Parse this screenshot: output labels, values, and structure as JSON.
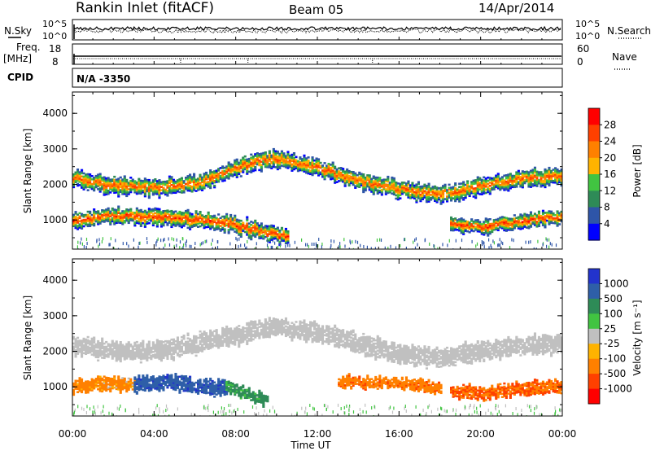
{
  "header": {
    "title": "Rankin Inlet (fitACF)",
    "beam": "Beam 05",
    "date": "14/Apr/2014"
  },
  "param_panels": {
    "nsky_label": "N.Sky",
    "nsearch_label": "N.Search",
    "noise_ticks": [
      "10^5",
      "10^0"
    ],
    "freq_label_top": "Freq.",
    "freq_label_bottom": "[MHz]",
    "freq_ticks": [
      "18",
      "8"
    ],
    "nave_label": "Nave",
    "nave_ticks": [
      "60",
      "0"
    ],
    "cpid_label": "CPID",
    "cpid_value": "N/A -3350"
  },
  "colors": {
    "power_scale": [
      "#0000ff",
      "#2e55a8",
      "#2e8b57",
      "#41c441",
      "#ffb300",
      "#ff8000",
      "#ff4000",
      "#ff0000"
    ],
    "velocity_scale": [
      "#2233cc",
      "#2e5fa8",
      "#2e8b57",
      "#41c441",
      "#c0c0c0",
      "#ffb300",
      "#ff8000",
      "#ff4000",
      "#ff0000"
    ],
    "ground_scatter": "#c0c0c0"
  },
  "chart_data": [
    {
      "type": "heatmap",
      "title": "",
      "xlabel": "Time UT",
      "ylabel": "Slant Range [km]",
      "xticks": [
        "00:00",
        "04:00",
        "08:00",
        "12:00",
        "16:00",
        "20:00",
        "00:00"
      ],
      "xlim_hours": [
        0,
        24
      ],
      "yticks": [
        "1000",
        "2000",
        "3000",
        "4000"
      ],
      "ylim_km": [
        180,
        4600
      ],
      "colorbar_label": "Power [dB]",
      "colorbar_ticks": [
        "4",
        "8",
        "12",
        "16",
        "20",
        "24",
        "28"
      ],
      "colorbar_range": [
        0,
        32
      ],
      "bands": [
        {
          "x": [
            0,
            2,
            4,
            6,
            8,
            9,
            10,
            12,
            14,
            16,
            18,
            20,
            22,
            24
          ],
          "center_km": [
            2150,
            1950,
            1900,
            2000,
            2450,
            2650,
            2700,
            2450,
            2100,
            1850,
            1700,
            1950,
            2150,
            2200
          ],
          "width_km": 450,
          "peak_db": 26
        },
        {
          "x": [
            0,
            2,
            4,
            6,
            7.5,
            9,
            10.5
          ],
          "center_km": [
            950,
            1100,
            1100,
            1000,
            900,
            700,
            500
          ],
          "width_km": 420,
          "peak_db": 28
        },
        {
          "x": [
            18.5,
            20,
            22,
            24
          ],
          "center_km": [
            850,
            800,
            950,
            1100
          ],
          "width_km": 380,
          "peak_db": 28
        }
      ]
    },
    {
      "type": "heatmap",
      "title": "",
      "xlabel": "Time UT",
      "ylabel": "Slant Range [km]",
      "xticks": [
        "00:00",
        "04:00",
        "08:00",
        "12:00",
        "16:00",
        "20:00",
        "00:00"
      ],
      "xlim_hours": [
        0,
        24
      ],
      "yticks": [
        "1000",
        "2000",
        "3000",
        "4000"
      ],
      "ylim_km": [
        180,
        4600
      ],
      "colorbar_label": "Velocity [m s⁻¹]",
      "colorbar_ticks": [
        "1000",
        "500",
        "100",
        "25",
        "-25",
        "-100",
        "-500",
        "-1000"
      ],
      "colorbar_range": [
        -1000,
        1000
      ],
      "bands": [
        {
          "x": [
            0,
            2,
            4,
            6,
            8,
            10,
            12,
            14,
            16,
            18,
            20,
            22,
            24
          ],
          "center_km": [
            2150,
            2000,
            2000,
            2200,
            2450,
            2700,
            2500,
            2200,
            1900,
            1800,
            2000,
            2150,
            2200
          ],
          "width_km": 500,
          "velocity": 0,
          "ground_scatter": true
        },
        {
          "x": [
            0,
            1.5,
            3
          ],
          "center_km": [
            1000,
            1100,
            1050
          ],
          "width_km": 350,
          "velocity": -150
        },
        {
          "x": [
            3,
            4.5,
            6,
            7.5
          ],
          "center_km": [
            1050,
            1150,
            1000,
            950
          ],
          "width_km": 400,
          "velocity": 600
        },
        {
          "x": [
            7.5,
            8.5,
            9.5
          ],
          "center_km": [
            1050,
            800,
            600
          ],
          "width_km": 300,
          "velocity": 150
        },
        {
          "x": [
            13,
            15,
            17,
            18
          ],
          "center_km": [
            1150,
            1100,
            1050,
            950
          ],
          "width_km": 280,
          "velocity": -200
        },
        {
          "x": [
            18.5,
            20,
            22,
            24
          ],
          "center_km": [
            850,
            800,
            950,
            1000
          ],
          "width_km": 350,
          "velocity": -300
        }
      ]
    }
  ]
}
